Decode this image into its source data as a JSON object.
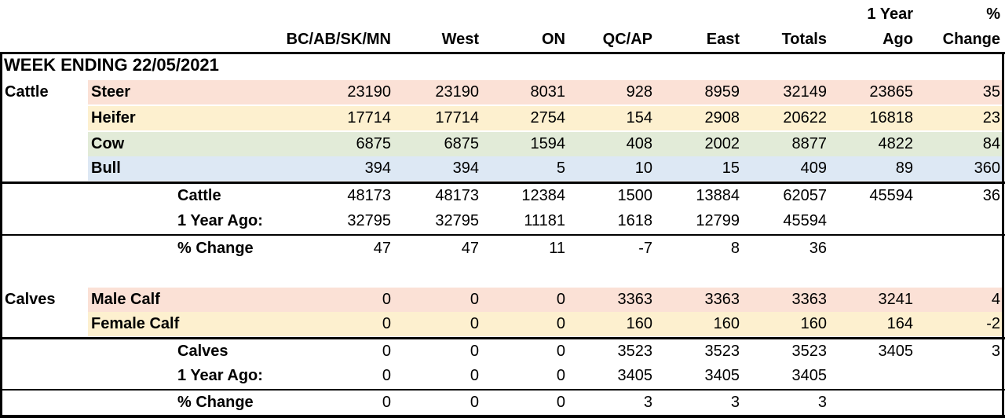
{
  "title": "WEEK ENDING 22/05/2021",
  "columns": [
    [
      "BC/AB/SK/MN"
    ],
    [
      "West"
    ],
    [
      "ON"
    ],
    [
      "QC/AP"
    ],
    [
      "East"
    ],
    [
      "Totals"
    ],
    [
      "1 Year",
      "Ago"
    ],
    [
      "%",
      "Change"
    ]
  ],
  "rows": [
    {
      "group": "Cattle",
      "label": "Steer",
      "color": "#fbe1d6",
      "values": [
        23190,
        23190,
        8031,
        928,
        8959,
        32149,
        23865,
        35
      ]
    },
    {
      "label": "Heifer",
      "color": "#fdf0cf",
      "values": [
        17714,
        17714,
        2754,
        154,
        2908,
        20622,
        16818,
        23
      ]
    },
    {
      "label": "Cow",
      "color": "#e2ebd8",
      "values": [
        6875,
        6875,
        1594,
        408,
        2002,
        8877,
        4822,
        84
      ]
    },
    {
      "label": "Bull",
      "color": "#dde8f4",
      "values": [
        394,
        394,
        5,
        10,
        15,
        409,
        89,
        360
      ]
    },
    {
      "label": "Cattle",
      "values": [
        48173,
        48173,
        12384,
        1500,
        13884,
        62057,
        45594,
        36
      ]
    },
    {
      "label": "1 Year Ago:",
      "values": [
        32795,
        32795,
        11181,
        1618,
        12799,
        45594
      ]
    },
    {
      "label": "% Change",
      "values": [
        47,
        47,
        11,
        -7,
        8,
        36
      ]
    },
    {
      "group": "Calves",
      "label": "Male Calf",
      "color": "#fbe1d6",
      "values": [
        0,
        0,
        0,
        3363,
        3363,
        3363,
        3241,
        4
      ]
    },
    {
      "label": "Female Calf",
      "color": "#fdf0cf",
      "values": [
        0,
        0,
        0,
        160,
        160,
        160,
        164,
        -2
      ]
    },
    {
      "label": "Calves",
      "values": [
        0,
        0,
        0,
        3523,
        3523,
        3523,
        3405,
        3
      ]
    },
    {
      "label": "1 Year Ago:",
      "values": [
        0,
        0,
        0,
        3405,
        3405,
        3405
      ]
    },
    {
      "label": "% Change",
      "values": [
        0,
        0,
        0,
        3,
        3,
        3
      ]
    }
  ]
}
